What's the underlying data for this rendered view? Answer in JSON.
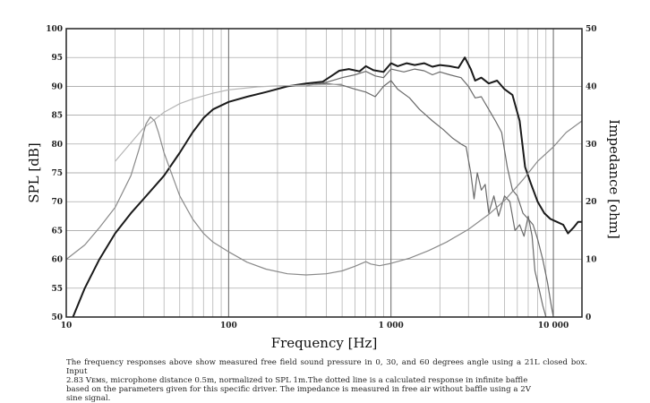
{
  "chart_data": {
    "type": "line",
    "xlabel": "Frequency [Hz]",
    "ylabel": "SPL [dB]",
    "y2label": "Impedance [ohm]",
    "xscale": "log",
    "xlim": [
      10,
      15000
    ],
    "ylim": [
      50,
      100
    ],
    "y2lim": [
      0,
      50
    ],
    "grid": true,
    "x_tick_labels": [
      {
        "value": 10,
        "label": "10"
      },
      {
        "value": 100,
        "label": "100"
      },
      {
        "value": 1000,
        "label": "1 000"
      },
      {
        "value": 10000,
        "label": "10 000"
      }
    ],
    "y_ticks": [
      50,
      55,
      60,
      65,
      70,
      75,
      80,
      85,
      90,
      95,
      100
    ],
    "y2_ticks": [
      0,
      10,
      20,
      30,
      40,
      50
    ],
    "series": [
      {
        "color": "#1a1a1a",
        "points": [
          [
            11,
            50
          ],
          [
            13,
            55
          ],
          [
            16,
            60
          ],
          [
            20,
            64.5
          ],
          [
            25,
            68
          ],
          [
            30,
            70.5
          ],
          [
            40,
            74.5
          ],
          [
            50,
            78.5
          ],
          [
            60,
            82
          ],
          [
            70,
            84.5
          ],
          [
            80,
            86
          ],
          [
            100,
            87.3
          ],
          [
            130,
            88.2
          ],
          [
            170,
            89
          ],
          [
            230,
            90
          ],
          [
            300,
            90.5
          ],
          [
            380,
            90.8
          ],
          [
            430,
            91.8
          ],
          [
            480,
            92.7
          ],
          [
            550,
            93
          ],
          [
            640,
            92.6
          ],
          [
            700,
            93.5
          ],
          [
            780,
            92.8
          ],
          [
            900,
            92.5
          ],
          [
            1000,
            94
          ],
          [
            1100,
            93.5
          ],
          [
            1250,
            94
          ],
          [
            1400,
            93.7
          ],
          [
            1600,
            94
          ],
          [
            1800,
            93.4
          ],
          [
            2000,
            93.7
          ],
          [
            2300,
            93.5
          ],
          [
            2600,
            93.2
          ],
          [
            2850,
            95
          ],
          [
            3100,
            93
          ],
          [
            3300,
            91
          ],
          [
            3600,
            91.5
          ],
          [
            4000,
            90.5
          ],
          [
            4500,
            91
          ],
          [
            5000,
            89.5
          ],
          [
            5600,
            88.5
          ],
          [
            6200,
            84
          ],
          [
            6700,
            76
          ],
          [
            7300,
            73
          ],
          [
            8000,
            70
          ],
          [
            8800,
            68
          ],
          [
            9600,
            67
          ],
          [
            10500,
            66.5
          ],
          [
            11500,
            66
          ],
          [
            12300,
            64.5
          ],
          [
            13300,
            65.5
          ],
          [
            14200,
            66.5
          ],
          [
            15000,
            66.5
          ]
        ]
      },
      {
        "color": "#6a6a6a",
        "points": [
          [
            300,
            90.2
          ],
          [
            400,
            90.7
          ],
          [
            500,
            91.5
          ],
          [
            600,
            92
          ],
          [
            700,
            92.6
          ],
          [
            800,
            91.8
          ],
          [
            900,
            91.5
          ],
          [
            1000,
            93
          ],
          [
            1200,
            92.5
          ],
          [
            1400,
            93
          ],
          [
            1600,
            92.7
          ],
          [
            1800,
            92
          ],
          [
            2000,
            92.5
          ],
          [
            2300,
            92
          ],
          [
            2700,
            91.5
          ],
          [
            3000,
            90
          ],
          [
            3300,
            88
          ],
          [
            3600,
            88.2
          ],
          [
            4000,
            86
          ],
          [
            4400,
            84
          ],
          [
            4800,
            82
          ],
          [
            5200,
            76
          ],
          [
            5600,
            72
          ],
          [
            6000,
            71
          ],
          [
            6500,
            68
          ],
          [
            7000,
            67
          ],
          [
            7500,
            66
          ],
          [
            8000,
            63.5
          ],
          [
            8600,
            60
          ],
          [
            9200,
            56
          ],
          [
            9700,
            52
          ],
          [
            10000,
            50
          ]
        ]
      },
      {
        "color": "#6a6a6a",
        "points": [
          [
            300,
            90.1
          ],
          [
            400,
            90.5
          ],
          [
            500,
            90.2
          ],
          [
            600,
            89.5
          ],
          [
            700,
            89
          ],
          [
            800,
            88.2
          ],
          [
            900,
            90
          ],
          [
            1000,
            91
          ],
          [
            1100,
            89.5
          ],
          [
            1300,
            88
          ],
          [
            1500,
            86
          ],
          [
            1800,
            84
          ],
          [
            2100,
            82.5
          ],
          [
            2400,
            81
          ],
          [
            2700,
            80
          ],
          [
            2900,
            79.5
          ],
          [
            3100,
            75
          ],
          [
            3250,
            70.5
          ],
          [
            3400,
            75
          ],
          [
            3600,
            72
          ],
          [
            3800,
            73
          ],
          [
            4000,
            68
          ],
          [
            4300,
            71
          ],
          [
            4600,
            67.5
          ],
          [
            5000,
            71
          ],
          [
            5400,
            70
          ],
          [
            5800,
            65
          ],
          [
            6200,
            66
          ],
          [
            6600,
            64
          ],
          [
            7000,
            67.5
          ],
          [
            7400,
            64
          ],
          [
            7700,
            58
          ],
          [
            8000,
            56
          ],
          [
            8600,
            52
          ],
          [
            9000,
            50
          ]
        ]
      },
      {
        "color": "#b5b5b5",
        "points": [
          [
            20,
            77
          ],
          [
            25,
            80.2
          ],
          [
            30,
            82.8
          ],
          [
            40,
            85.5
          ],
          [
            50,
            87
          ],
          [
            60,
            87.8
          ],
          [
            80,
            88.8
          ],
          [
            100,
            89.4
          ],
          [
            150,
            89.9
          ],
          [
            200,
            90.1
          ],
          [
            300,
            90.2
          ],
          [
            400,
            90.3
          ],
          [
            500,
            90.4
          ]
        ]
      },
      {
        "color": "#8a8a8a",
        "axis": "right",
        "points": [
          [
            10,
            10
          ],
          [
            13,
            12.5
          ],
          [
            16,
            15.5
          ],
          [
            20,
            19
          ],
          [
            25,
            24.5
          ],
          [
            28,
            29
          ],
          [
            31,
            33.5
          ],
          [
            33,
            34.7
          ],
          [
            35,
            34
          ],
          [
            37,
            32
          ],
          [
            40,
            28.5
          ],
          [
            45,
            24.5
          ],
          [
            50,
            21
          ],
          [
            60,
            17
          ],
          [
            70,
            14.5
          ],
          [
            80,
            13
          ],
          [
            100,
            11.3
          ],
          [
            130,
            9.5
          ],
          [
            170,
            8.3
          ],
          [
            230,
            7.5
          ],
          [
            300,
            7.3
          ],
          [
            400,
            7.5
          ],
          [
            500,
            8
          ],
          [
            600,
            8.8
          ],
          [
            700,
            9.6
          ],
          [
            750,
            9.2
          ],
          [
            850,
            8.9
          ],
          [
            1000,
            9.3
          ],
          [
            1300,
            10.2
          ],
          [
            1700,
            11.5
          ],
          [
            2200,
            13
          ],
          [
            3000,
            15.2
          ],
          [
            4000,
            17.8
          ],
          [
            5000,
            20.2
          ],
          [
            6500,
            23.8
          ],
          [
            8000,
            27
          ],
          [
            10000,
            29.5
          ],
          [
            12000,
            32
          ],
          [
            15000,
            34
          ]
        ]
      }
    ]
  },
  "caption": {
    "line1": "The frequency responses above show measured free field sound pressure in 0, 30, and 60 degrees angle using a 21L closed box. Input",
    "line2": "2.83 Vᴇᴍs, microphone distance 0.5m, normalized to SPL 1m.The dotted line is a calculated response in infinite baffle",
    "line3": "based on the parameters given for this specific driver. The impedance is measured in free air without baffle using a 2V",
    "line4": "sine signal."
  }
}
